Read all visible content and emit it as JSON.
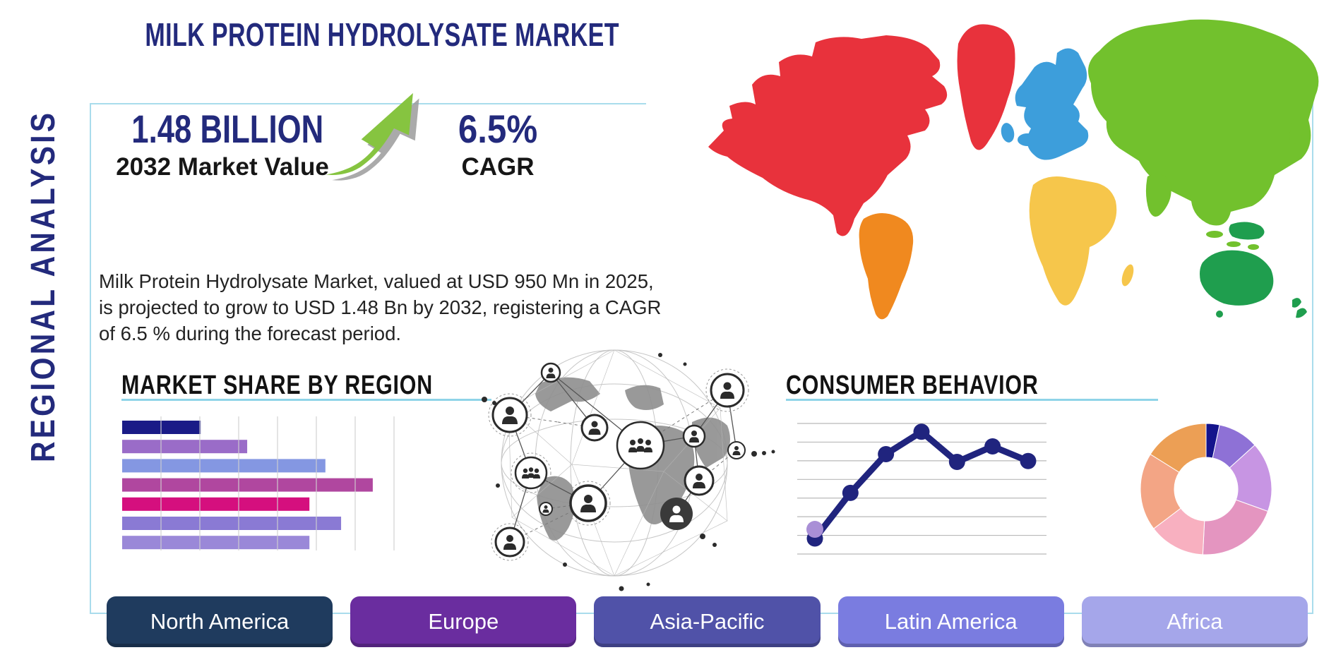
{
  "title": "MILK PROTEIN HYDROLYSATE MARKET",
  "side_label": "REGIONAL ANALYSIS",
  "stats": {
    "market_value": "1.48 BILLION",
    "market_value_label": "2032 Market Value",
    "cagr_value": "6.5%",
    "cagr_label": "CAGR"
  },
  "description": "Milk Protein Hydrolysate Market, valued at USD 950 Mn in 2025, is projected to grow to USD 1.48 Bn by 2032, registering a CAGR of 6.5 % during the forecast period.",
  "section_headings": {
    "market_share": "MARKET SHARE BY REGION",
    "consumer_behavior": "CONSUMER BEHAVIOR"
  },
  "regions": [
    {
      "label": "North America",
      "color": "#1f3b5e"
    },
    {
      "label": "Europe",
      "color": "#6a2d9f"
    },
    {
      "label": "Asia-Pacific",
      "color": "#5052a8"
    },
    {
      "label": "Latin America",
      "color": "#7a7ce0"
    },
    {
      "label": "Africa",
      "color": "#a5a6ea"
    }
  ],
  "world_map": {
    "regions": [
      {
        "id": "north-america",
        "color": "#e8323c"
      },
      {
        "id": "greenland",
        "color": "#e8323c"
      },
      {
        "id": "south-america",
        "color": "#f0891f"
      },
      {
        "id": "europe",
        "color": "#3d9edb"
      },
      {
        "id": "iceland",
        "color": "#3d9edb"
      },
      {
        "id": "africa",
        "color": "#f6c64b"
      },
      {
        "id": "asia",
        "color": "#72c12d"
      },
      {
        "id": "oceania",
        "color": "#1f9e4e"
      }
    ]
  },
  "chart_data": [
    {
      "type": "bar",
      "title": "MARKET SHARE BY REGION",
      "orientation": "horizontal",
      "categories": [
        "",
        "",
        "",
        "",
        "",
        "",
        ""
      ],
      "values_relative_pct": [
        28.5,
        45.4,
        73.8,
        91.0,
        68.0,
        79.5,
        68.0
      ],
      "bar_colors": [
        "#1a1b87",
        "#9a6cc8",
        "#8497e2",
        "#b0479f",
        "#d50f7e",
        "#8a7ad4",
        "#9a88d8"
      ],
      "gridline_count": 7,
      "value_labels_shown": false
    },
    {
      "type": "line",
      "title": "CONSUMER BEHAVIOR",
      "x": [
        1,
        2,
        3,
        4,
        5,
        6,
        7
      ],
      "values": [
        0.9,
        3.55,
        5.8,
        7.1,
        5.35,
        6.25,
        5.4
      ],
      "ylim": [
        0,
        8
      ],
      "line_color": "#20247e",
      "marker_color": "#20247e",
      "highlight_first_point_color": "#a98fd6",
      "gridline_count": 8,
      "grid_color": "#b9b9b9"
    },
    {
      "type": "pie",
      "donut": true,
      "slices_pct": [
        3.3,
        10.0,
        17.2,
        20.3,
        13.9,
        19.2,
        16.1
      ],
      "colors": [
        "#14148c",
        "#8e71d6",
        "#c795e3",
        "#e495c0",
        "#f8b0c0",
        "#f3a585",
        "#ec9f55"
      ]
    }
  ],
  "colors": {
    "navy_text": "#232a7c",
    "heading_text": "#121212",
    "frame_border": "#a9dcec",
    "heading_underline": "#8fd4e8",
    "arrow_green": "#86c440",
    "arrow_shadow": "#9b9b9b",
    "grid_gray": "#cfcfcf"
  }
}
